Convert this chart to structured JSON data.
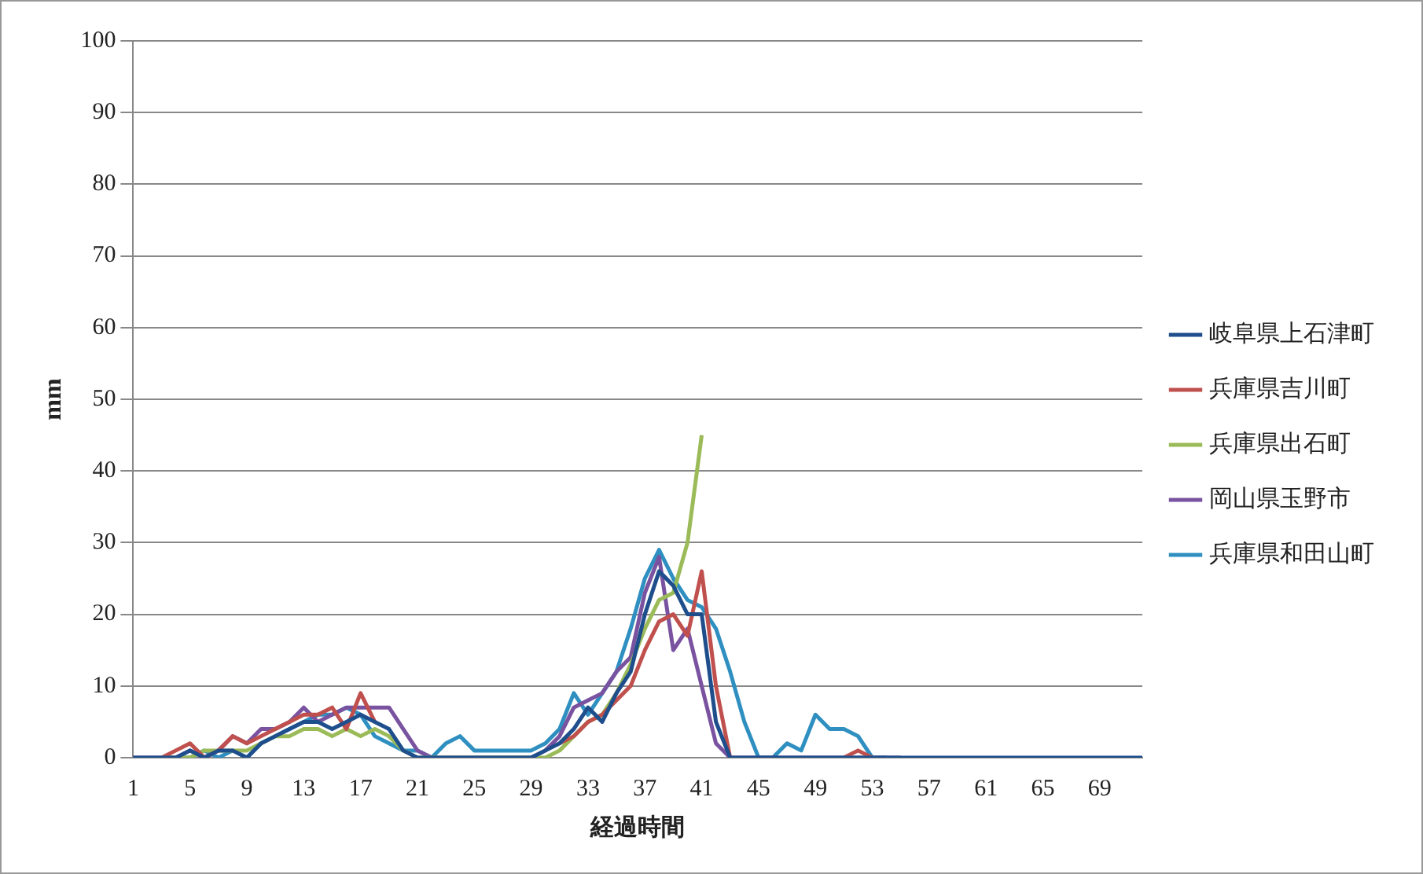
{
  "chart_data": {
    "type": "line",
    "xlabel": "経過時間",
    "ylabel": "mm",
    "categories": [
      "1",
      null,
      null,
      null,
      "5",
      null,
      null,
      null,
      "9",
      null,
      null,
      null,
      "13",
      null,
      null,
      null,
      "17",
      null,
      null,
      null,
      "21",
      null,
      null,
      null,
      "25",
      null,
      null,
      null,
      "29",
      null,
      null,
      null,
      "33",
      null,
      null,
      null,
      "37",
      null,
      null,
      null,
      "41",
      null,
      null,
      null,
      "45",
      null,
      null,
      null,
      "49",
      null,
      null,
      null,
      "53",
      null,
      null,
      null,
      "57",
      null,
      null,
      null,
      "61",
      null,
      null,
      null,
      "65",
      null,
      null,
      null,
      "69",
      null,
      null,
      null
    ],
    "series": [
      {
        "name": "岐阜県上石津町",
        "color": "#1f4e8c",
        "values": [
          0,
          0,
          0,
          0,
          1,
          0,
          1,
          1,
          0,
          2,
          3,
          4,
          5,
          5,
          4,
          5,
          6,
          5,
          4,
          1,
          0,
          0,
          0,
          0,
          0,
          0,
          0,
          0,
          0,
          1,
          2,
          4,
          7,
          5,
          9,
          12,
          20,
          26,
          24,
          20,
          20,
          5,
          0,
          0,
          0,
          0,
          0,
          0,
          0,
          0,
          0,
          0,
          0,
          0,
          0,
          0,
          0,
          0,
          0,
          0,
          0,
          0,
          0,
          0,
          0,
          0,
          0,
          0,
          0,
          0,
          0,
          0
        ]
      },
      {
        "name": "兵庫県吉川町",
        "color": "#c0504d",
        "values": [
          null,
          null,
          0,
          1,
          2,
          0,
          1,
          3,
          2,
          3,
          4,
          5,
          6,
          6,
          7,
          4,
          9,
          5,
          null,
          null,
          null,
          null,
          null,
          null,
          null,
          null,
          null,
          null,
          null,
          null,
          2,
          3,
          5,
          6,
          8,
          10,
          15,
          19,
          20,
          17,
          26,
          10,
          0,
          null,
          null,
          null,
          null,
          null,
          null,
          null,
          0,
          1,
          0,
          null,
          null,
          null,
          null,
          null,
          null,
          null,
          null,
          null,
          null,
          null,
          null,
          null,
          null,
          null,
          null,
          null,
          null,
          null
        ]
      },
      {
        "name": "兵庫県出石町",
        "color": "#9bbb59",
        "values": [
          null,
          null,
          0,
          0,
          0,
          1,
          1,
          1,
          1,
          2,
          3,
          3,
          4,
          4,
          3,
          4,
          3,
          4,
          3,
          1,
          0,
          0,
          0,
          0,
          0,
          0,
          0,
          0,
          0,
          0,
          1,
          3,
          5,
          6,
          9,
          13,
          18,
          22,
          23,
          30,
          45,
          null,
          null,
          null,
          null,
          null,
          null,
          null,
          null,
          null,
          null,
          null,
          null,
          null,
          null,
          null,
          null,
          null,
          null,
          null,
          null,
          null,
          null,
          null,
          null,
          null,
          null,
          null,
          null,
          null,
          null,
          null
        ]
      },
      {
        "name": "岡山県玉野市",
        "color": "#7952a0",
        "values": [
          0,
          0,
          0,
          0,
          1,
          0,
          1,
          3,
          2,
          4,
          4,
          5,
          7,
          5,
          6,
          7,
          7,
          7,
          7,
          4,
          1,
          0,
          0,
          0,
          0,
          0,
          0,
          0,
          0,
          1,
          3,
          7,
          8,
          9,
          12,
          14,
          23,
          28,
          15,
          18,
          10,
          2,
          0,
          0,
          0,
          0,
          0,
          0,
          0,
          0,
          0,
          0,
          0,
          0,
          0,
          null,
          null,
          null,
          null,
          null,
          null,
          null,
          null,
          null,
          null,
          null,
          null,
          null,
          null,
          null,
          null,
          null
        ]
      },
      {
        "name": "兵庫県和田山町",
        "color": "#2e8fc0",
        "values": [
          null,
          null,
          0,
          0,
          0,
          1,
          0,
          1,
          0,
          2,
          3,
          4,
          5,
          6,
          6,
          7,
          6,
          3,
          2,
          1,
          1,
          0,
          2,
          3,
          1,
          1,
          1,
          1,
          1,
          2,
          4,
          9,
          6,
          9,
          12,
          18,
          25,
          29,
          25,
          22,
          21,
          18,
          12,
          5,
          0,
          0,
          2,
          1,
          6,
          4,
          4,
          3,
          0,
          0,
          null,
          null,
          null,
          null,
          null,
          null,
          null,
          null,
          null,
          null,
          null,
          null,
          null,
          null,
          null,
          null,
          null,
          null
        ]
      }
    ],
    "ylim": [
      0,
      100
    ],
    "yticks": [
      0,
      10,
      20,
      30,
      40,
      50,
      60,
      70,
      80,
      90,
      100
    ],
    "grid": "y",
    "legend": "right",
    "marker": "none",
    "line_style": "solid"
  }
}
